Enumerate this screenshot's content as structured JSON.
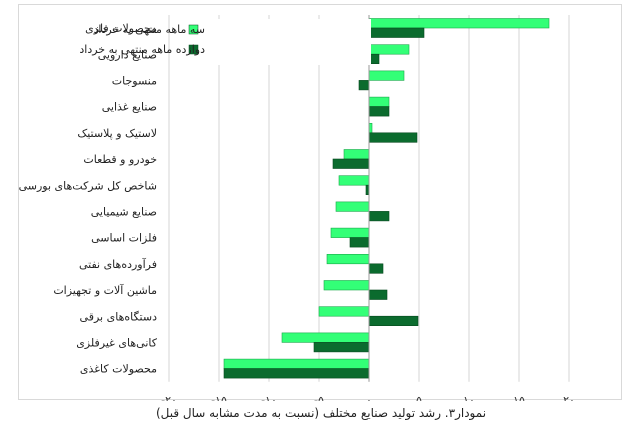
{
  "chart_data": {
    "type": "bar",
    "orientation": "horizontal",
    "categories": [
      "محصولات فلزی",
      "صنایع دارویی",
      "منسوجات",
      "صنایع غذایی",
      "لاستیک و پلاستیک",
      "خودرو و قطعات",
      "شاخص کل شرکت‌های بورسی",
      "صنایع شیمیایی",
      "فلزات اساسی",
      "فرآورده‌های نفتی",
      "ماشین آلات و تجهیزات",
      "دستگاه‌های برقی",
      "کانی‌های غیرفلزی",
      "محصولات کاغذی"
    ],
    "series": [
      {
        "name": "سه ماهه منتهی به خرداد",
        "color": "#33ff77",
        "values": [
          18,
          4,
          3.5,
          2,
          0.3,
          -2.5,
          -3,
          -3.3,
          -3.8,
          -4.2,
          -4.5,
          -5,
          -8.7,
          -14.5
        ]
      },
      {
        "name": "دوازده ماهه منتهی به خرداد",
        "color": "#0b6b2e",
        "values": [
          5.5,
          1,
          -1,
          2,
          4.8,
          -3.6,
          -0.3,
          2,
          -1.9,
          1.4,
          1.8,
          4.9,
          -5.5,
          -14.5
        ]
      }
    ],
    "xlim": [
      -20,
      20
    ],
    "xticks": [
      -20,
      -15,
      -10,
      -5,
      0,
      5,
      10,
      15,
      20
    ],
    "xtick_labels": [
      "-۲۰",
      "-۱۵",
      "-۱۰",
      "-۵",
      "۰",
      "۵",
      "۱۰",
      "۱۵",
      "۲۰"
    ],
    "grid": true,
    "legend_position": "top-left inside plot",
    "xlabel": "",
    "ylabel": ""
  },
  "caption": "نمودار۳. رشد تولید صنایع مختلف (نسبت به مدت مشابه سال قبل)"
}
